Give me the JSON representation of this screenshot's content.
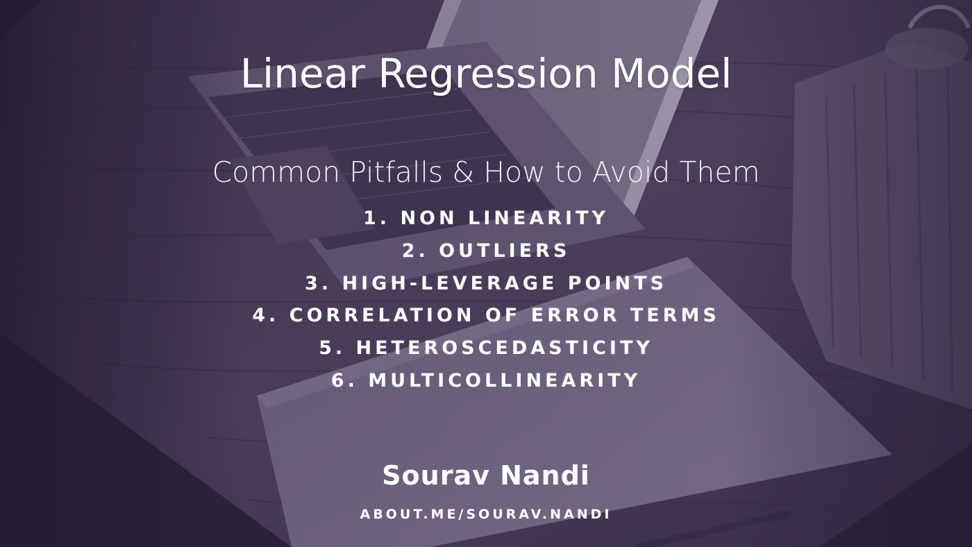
{
  "slide": {
    "title": "Linear Regression Model",
    "subtitle": "Common Pitfalls & How to Avoid Them",
    "pitfalls": [
      "1. NON LINEARITY",
      "2. OUTLIERS",
      "3. HIGH-LEVERAGE POINTS",
      "4. CORRELATION OF ERROR TERMS",
      "5. HETEROSCEDASTICITY",
      "6. MULTICOLLINEARITY"
    ],
    "author": "Sourav Nandi",
    "url": "ABOUT.ME/SOURAV.NANDI"
  },
  "colors": {
    "overlay": "#342648",
    "text": "#ffffff"
  }
}
